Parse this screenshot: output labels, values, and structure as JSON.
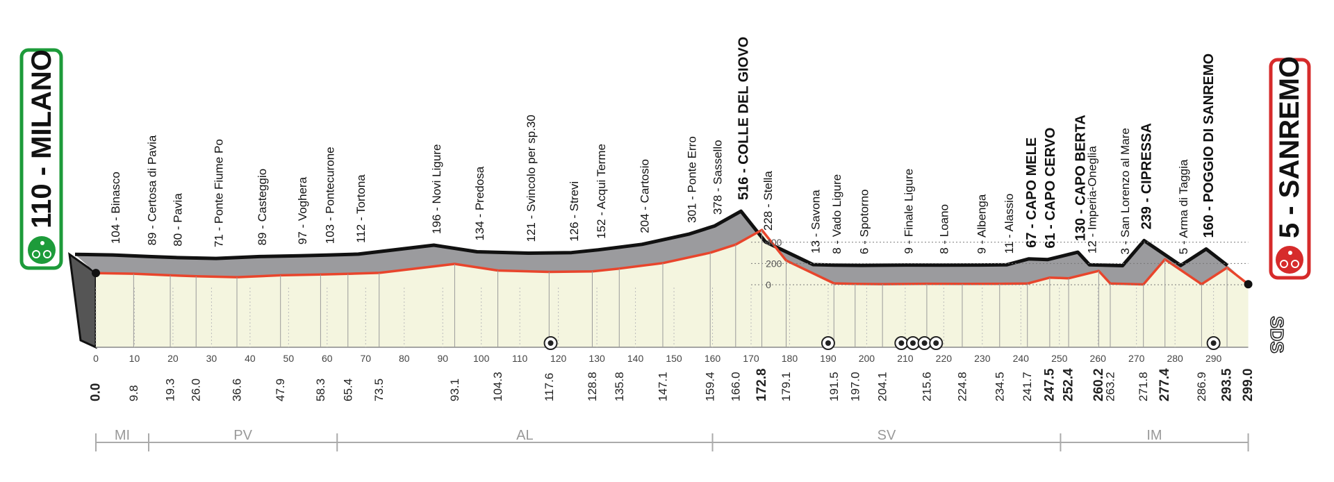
{
  "start": {
    "label": "110 - MILANO",
    "km": "0.0"
  },
  "finish": {
    "label": "5 - SANREMO",
    "km": "299.0"
  },
  "waypoints": [
    {
      "label": "104 - Binasco",
      "km": "9.8"
    },
    {
      "label": "89 - Certosa di Pavia",
      "km": "19.3"
    },
    {
      "label": "80 - Pavia",
      "km": "26.0"
    },
    {
      "label": "71 - Ponte Fiume Po",
      "km": "36.6"
    },
    {
      "label": "89 - Casteggio",
      "km": "47.9"
    },
    {
      "label": "97 - Voghera",
      "km": "58.3"
    },
    {
      "label": "103 - Pontecurone",
      "km": "65.4"
    },
    {
      "label": "112 - Tortona",
      "km": "73.5"
    },
    {
      "label": "196 - Novi Ligure",
      "km": "93.1"
    },
    {
      "label": "134 - Predosa",
      "km": "104.3"
    },
    {
      "label": "121 - Svincolo per sp.30",
      "km": "117.6"
    },
    {
      "label": "126 - Strevi",
      "km": "128.8"
    },
    {
      "label": "152 - Acqui Terme",
      "km": "135.8"
    },
    {
      "label": "204 - Cartosio",
      "km": "147.1"
    },
    {
      "label": "301 - Ponte Erro",
      "km": "159.4"
    },
    {
      "label": "378 - Sassello",
      "km": "166.0"
    },
    {
      "label": "516 - COLLE DEL GIOVO",
      "km": "172.8",
      "bold": true
    },
    {
      "label": "228 - Stella",
      "km": "179.1"
    },
    {
      "label": "13 - Savona",
      "km": "191.5"
    },
    {
      "label": "8 - Vado Ligure",
      "km": "197.0"
    },
    {
      "label": "6 - Spotorno",
      "km": "204.1"
    },
    {
      "label": "9 - Finale Ligure",
      "km": "215.6"
    },
    {
      "label": "8 - Loano",
      "km": "224.8"
    },
    {
      "label": "9 - Albenga",
      "km": "234.5"
    },
    {
      "label": "11 - Alassio",
      "km": "241.7"
    },
    {
      "label": "67 - CAPO MELE",
      "km": "247.5",
      "bold": true
    },
    {
      "label": "61 - CAPO CERVO",
      "km": "252.4",
      "bold": true
    },
    {
      "label": "130 - CAPO BERTA",
      "km": "260.2",
      "bold": true
    },
    {
      "label": "12 - Imperia-Oneglia",
      "km": "263.2"
    },
    {
      "label": "3 - San Lorenzo al Mare",
      "km": "271.8"
    },
    {
      "label": "239 - CIPRESSA",
      "km": "277.4",
      "bold": true
    },
    {
      "label": "5 - Arma di Taggia",
      "km": "286.9"
    },
    {
      "label": "160 - POGGIO DI SANREMO",
      "km": "293.5",
      "bold": true
    }
  ],
  "axis_ticks": [
    0,
    10,
    20,
    30,
    40,
    50,
    60,
    70,
    80,
    90,
    100,
    110,
    120,
    130,
    140,
    150,
    160,
    170,
    180,
    190,
    200,
    210,
    220,
    230,
    240,
    250,
    260,
    270,
    280,
    290
  ],
  "elevation_ticks": [
    400,
    200,
    0
  ],
  "provinces": [
    "MI",
    "PV",
    "AL",
    "SV",
    "IM"
  ],
  "logo": "SDS"
}
